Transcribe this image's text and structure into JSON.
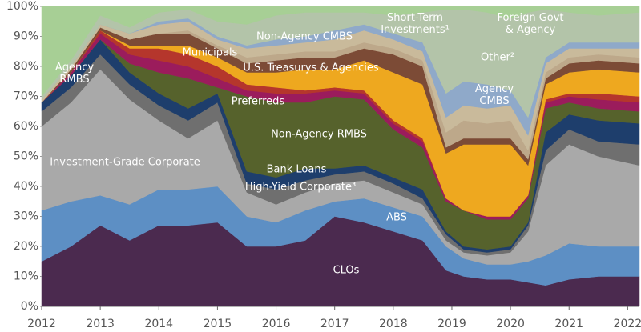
{
  "chart_data": {
    "type": "stacked-area",
    "x": [
      2012.0,
      2012.5,
      2013.0,
      2013.5,
      2014.0,
      2014.5,
      2015.0,
      2015.5,
      2016.0,
      2016.5,
      2017.0,
      2017.5,
      2018.0,
      2018.5,
      2018.9,
      2019.2,
      2019.6,
      2020.0,
      2020.3,
      2020.6,
      2021.0,
      2021.5,
      2022.2
    ],
    "xlim": [
      2012.0,
      2022.2
    ],
    "xticks": [
      2012,
      2013,
      2014,
      2015,
      2016,
      2017,
      2018,
      2019,
      2020,
      2021,
      2022
    ],
    "ylim": [
      0,
      100
    ],
    "yticks": [
      {
        "value": 0,
        "label": "0%"
      },
      {
        "value": 10,
        "label": "10%"
      },
      {
        "value": 20,
        "label": "20%"
      },
      {
        "value": 30,
        "label": "30%"
      },
      {
        "value": 40,
        "label": "40%"
      },
      {
        "value": 50,
        "label": "50%"
      },
      {
        "value": 60,
        "label": "60%"
      },
      {
        "value": 70,
        "label": "70%"
      },
      {
        "value": 80,
        "label": "80%"
      },
      {
        "value": 90,
        "label": "90%"
      },
      {
        "value": 100,
        "label": "100%"
      }
    ],
    "grid": false,
    "series": [
      {
        "name": "CLOs",
        "color": "#4b2a4f",
        "values": [
          15,
          20,
          27,
          22,
          27,
          27,
          28,
          20,
          20,
          22,
          30,
          28,
          25,
          22,
          12,
          10,
          9,
          9,
          8,
          7,
          9,
          10,
          10
        ]
      },
      {
        "name": "ABS",
        "color": "#5d8fc4",
        "values": [
          17,
          15,
          10,
          12,
          12,
          12,
          12,
          10,
          8,
          10,
          5,
          8,
          8,
          8,
          8,
          6,
          5,
          5,
          7,
          10,
          12,
          10,
          10
        ]
      },
      {
        "name": "Investment-Grade Corporate",
        "color": "#a9a9a9",
        "values": [
          28,
          33,
          42,
          35,
          23,
          17,
          22,
          8,
          6,
          6,
          6,
          6,
          5,
          4,
          2,
          2,
          3,
          4,
          10,
          30,
          33,
          30,
          27
        ]
      },
      {
        "name": "High-Yield Corporate³",
        "color": "#6f6f6f",
        "values": [
          5,
          5,
          5,
          5,
          5,
          6,
          6,
          3,
          5,
          4,
          3,
          3,
          3,
          2,
          2,
          1,
          1,
          1,
          2,
          5,
          5,
          5,
          7
        ]
      },
      {
        "name": "Bank Loans",
        "color": "#1e3e6c",
        "values": [
          3,
          4,
          5,
          4,
          4,
          4,
          3,
          4,
          4,
          4,
          2,
          2,
          2,
          3,
          1,
          1,
          1,
          1,
          1,
          6,
          5,
          7,
          7
        ]
      },
      {
        "name": "Non-Agency RMBS",
        "color": "#56622c",
        "values": [
          0,
          0,
          0,
          3,
          7,
          10,
          2,
          25,
          25,
          22,
          24,
          22,
          16,
          14,
          10,
          12,
          10,
          9,
          8,
          8,
          4,
          4,
          4
        ]
      },
      {
        "name": "Preferreds",
        "color": "#9b1c5c",
        "values": [
          0,
          1,
          2,
          3,
          4,
          4,
          3,
          2,
          3,
          3,
          2,
          2,
          2,
          2,
          1,
          0,
          1,
          1,
          1,
          2,
          2,
          3,
          3
        ]
      },
      {
        "name": "Municipals",
        "color": "#b5362c",
        "values": [
          0,
          0,
          1,
          2,
          4,
          4,
          4,
          2,
          2,
          1,
          1,
          1,
          1,
          1,
          0,
          0,
          0,
          0,
          0,
          1,
          1,
          2,
          2
        ]
      },
      {
        "name": "U.S. Treasurys & Agencies",
        "color": "#eea81f",
        "values": [
          0,
          0,
          0,
          1,
          1,
          3,
          3,
          4,
          5,
          7,
          6,
          10,
          16,
          18,
          15,
          22,
          24,
          24,
          10,
          5,
          7,
          8,
          8
        ]
      },
      {
        "name": "Non-Agency CMBS",
        "color": "#7c4b36",
        "values": [
          0,
          1,
          1,
          2,
          4,
          4,
          3,
          3,
          4,
          4,
          4,
          4,
          6,
          6,
          2,
          2,
          2,
          2,
          2,
          2,
          3,
          3,
          3
        ]
      },
      {
        "name": "Agency CMBS",
        "color": "#bda88a",
        "values": [
          0,
          0,
          0,
          0,
          0,
          1,
          1,
          2,
          2,
          2,
          2,
          2,
          2,
          2,
          5,
          6,
          5,
          6,
          3,
          2,
          2,
          2,
          2
        ]
      },
      {
        "name": "Other²",
        "color": "#c9ba9b",
        "values": [
          1,
          1,
          1,
          2,
          3,
          3,
          2,
          3,
          3,
          3,
          4,
          4,
          3,
          3,
          5,
          5,
          5,
          5,
          5,
          3,
          3,
          2,
          3
        ]
      },
      {
        "name": "Foreign Govt & Agency",
        "color": "#8fa9c9",
        "values": [
          0,
          0,
          0,
          0,
          1,
          1,
          1,
          1,
          2,
          2,
          3,
          2,
          2,
          3,
          8,
          8,
          8,
          5,
          6,
          2,
          2,
          2,
          2
        ]
      },
      {
        "name": "Short-Term Investments¹",
        "color": "#b3c4a9",
        "values": [
          1,
          2,
          3,
          2,
          3,
          3,
          5,
          7,
          8,
          8,
          6,
          4,
          6,
          10,
          28,
          24,
          24,
          24,
          35,
          16,
          10,
          9,
          10
        ]
      },
      {
        "name": "Agency RMBS",
        "color": "#a7cf95",
        "values": [
          30,
          18,
          3,
          7,
          2,
          1,
          5,
          6,
          3,
          2,
          2,
          2,
          3,
          2,
          1,
          1,
          2,
          4,
          2,
          1,
          2,
          3,
          2
        ]
      }
    ]
  }
}
